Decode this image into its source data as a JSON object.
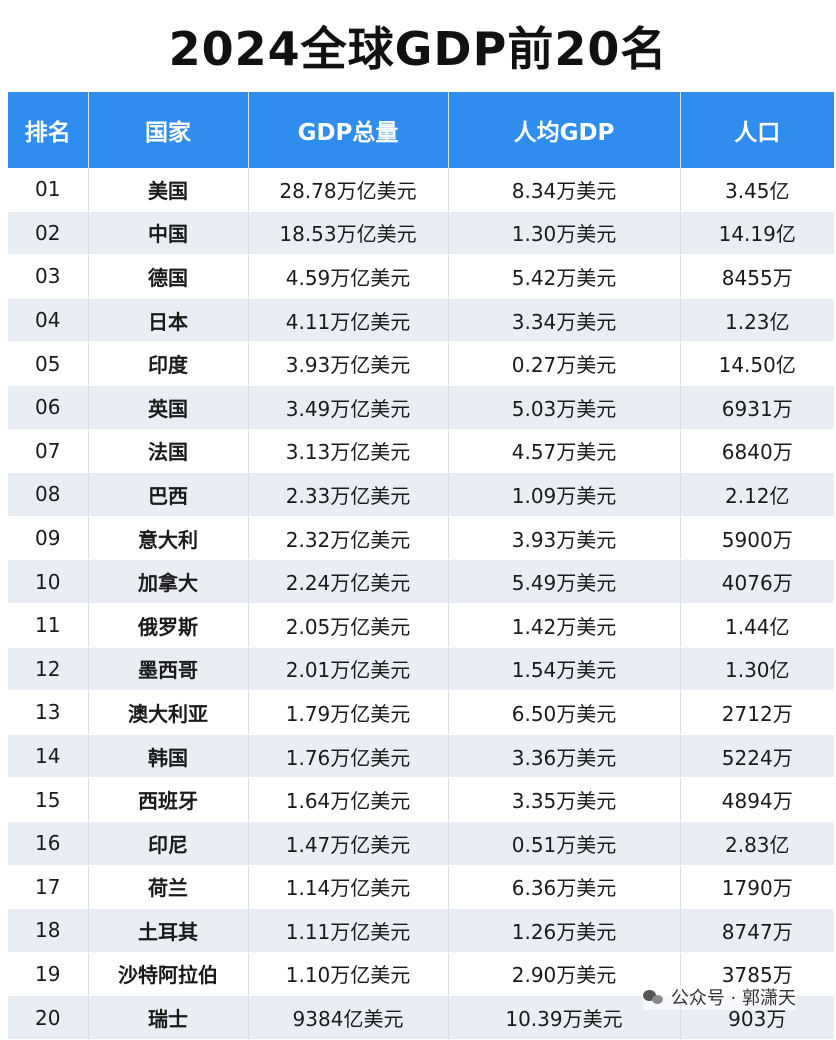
{
  "title": "2024全球GDP前20名",
  "columns": [
    "排名",
    "国家",
    "GDP总量",
    "人均GDP",
    "人口"
  ],
  "rows": [
    {
      "rank": "01",
      "country": "美国",
      "gdp": "28.78万亿美元",
      "per_capita": "8.34万美元",
      "population": "3.45亿"
    },
    {
      "rank": "02",
      "country": "中国",
      "gdp": "18.53万亿美元",
      "per_capita": "1.30万美元",
      "population": "14.19亿"
    },
    {
      "rank": "03",
      "country": "德国",
      "gdp": "4.59万亿美元",
      "per_capita": "5.42万美元",
      "population": "8455万"
    },
    {
      "rank": "04",
      "country": "日本",
      "gdp": "4.11万亿美元",
      "per_capita": "3.34万美元",
      "population": "1.23亿"
    },
    {
      "rank": "05",
      "country": "印度",
      "gdp": "3.93万亿美元",
      "per_capita": "0.27万美元",
      "population": "14.50亿"
    },
    {
      "rank": "06",
      "country": "英国",
      "gdp": "3.49万亿美元",
      "per_capita": "5.03万美元",
      "population": "6931万"
    },
    {
      "rank": "07",
      "country": "法国",
      "gdp": "3.13万亿美元",
      "per_capita": "4.57万美元",
      "population": "6840万"
    },
    {
      "rank": "08",
      "country": "巴西",
      "gdp": "2.33万亿美元",
      "per_capita": "1.09万美元",
      "population": "2.12亿"
    },
    {
      "rank": "09",
      "country": "意大利",
      "gdp": "2.32万亿美元",
      "per_capita": "3.93万美元",
      "population": "5900万"
    },
    {
      "rank": "10",
      "country": "加拿大",
      "gdp": "2.24万亿美元",
      "per_capita": "5.49万美元",
      "population": "4076万"
    },
    {
      "rank": "11",
      "country": "俄罗斯",
      "gdp": "2.05万亿美元",
      "per_capita": "1.42万美元",
      "population": "1.44亿"
    },
    {
      "rank": "12",
      "country": "墨西哥",
      "gdp": "2.01万亿美元",
      "per_capita": "1.54万美元",
      "population": "1.30亿"
    },
    {
      "rank": "13",
      "country": "澳大利亚",
      "gdp": "1.79万亿美元",
      "per_capita": "6.50万美元",
      "population": "2712万"
    },
    {
      "rank": "14",
      "country": "韩国",
      "gdp": "1.76万亿美元",
      "per_capita": "3.36万美元",
      "population": "5224万"
    },
    {
      "rank": "15",
      "country": "西班牙",
      "gdp": "1.64万亿美元",
      "per_capita": "3.35万美元",
      "population": "4894万"
    },
    {
      "rank": "16",
      "country": "印尼",
      "gdp": "1.47万亿美元",
      "per_capita": "0.51万美元",
      "population": "2.83亿"
    },
    {
      "rank": "17",
      "country": "荷兰",
      "gdp": "1.14万亿美元",
      "per_capita": "6.36万美元",
      "population": "1790万"
    },
    {
      "rank": "18",
      "country": "土耳其",
      "gdp": "1.11万亿美元",
      "per_capita": "1.26万美元",
      "population": "8747万"
    },
    {
      "rank": "19",
      "country": "沙特阿拉伯",
      "gdp": "1.10万亿美元",
      "per_capita": "2.90万美元",
      "population": "3785万"
    },
    {
      "rank": "20",
      "country": "瑞士",
      "gdp": "9384亿美元",
      "per_capita": "10.39万美元",
      "population": "903万"
    }
  ],
  "watermark": {
    "text": "公众号 · 郭潇天",
    "icon": "wechat-icon"
  }
}
